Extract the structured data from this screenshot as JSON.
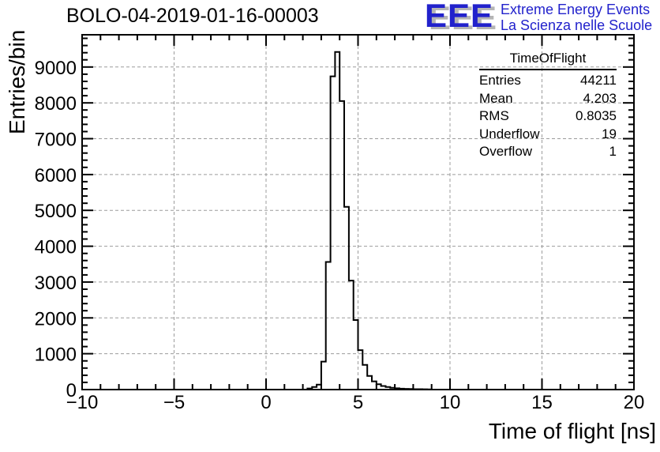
{
  "title": "BOLO-04-2019-01-16-00003",
  "logo": {
    "acronym": "EEE",
    "line1": "Extreme Energy Events",
    "line2": "La Scienza nelle Scuole",
    "color": "#2222cc",
    "shadow_color": "#b5b5b5"
  },
  "stats": {
    "title": "TimeOfFlight",
    "rows": [
      {
        "label": "Entries",
        "value": "44211"
      },
      {
        "label": "Mean",
        "value": "4.203"
      },
      {
        "label": "RMS",
        "value": "0.8035"
      },
      {
        "label": "Underflow",
        "value": "19"
      },
      {
        "label": "Overflow",
        "value": "1"
      }
    ]
  },
  "chart_data": {
    "type": "bar",
    "subtype": "step-histogram",
    "title": "BOLO-04-2019-01-16-00003",
    "xlabel": "Time of flight [ns]",
    "ylabel": "Entries/bin",
    "xlim": [
      -10,
      20
    ],
    "ylim": [
      0,
      9900
    ],
    "x_major_ticks": [
      -10,
      -5,
      0,
      5,
      10,
      15,
      20
    ],
    "x_tick_labels": [
      "−10",
      "−5",
      "0",
      "5",
      "10",
      "15",
      "20"
    ],
    "x_minor_step": 1,
    "y_major_ticks": [
      0,
      1000,
      2000,
      3000,
      4000,
      5000,
      6000,
      7000,
      8000,
      9000
    ],
    "y_minor_step": 200,
    "grid": true,
    "grid_style": "dashed",
    "grid_color": "#9c9c9c",
    "line_color": "#000000",
    "bins": {
      "start": 2.25,
      "width": 0.25,
      "values": [
        30,
        70,
        140,
        780,
        3560,
        8740,
        9420,
        8050,
        5100,
        3040,
        1940,
        1100,
        690,
        380,
        230,
        150,
        100,
        70,
        50,
        35,
        25,
        20,
        15,
        12,
        10,
        8,
        5
      ]
    },
    "entries": 44211,
    "mean": 4.203,
    "rms": 0.8035,
    "underflow": 19,
    "overflow": 1,
    "legend_position": "none"
  }
}
